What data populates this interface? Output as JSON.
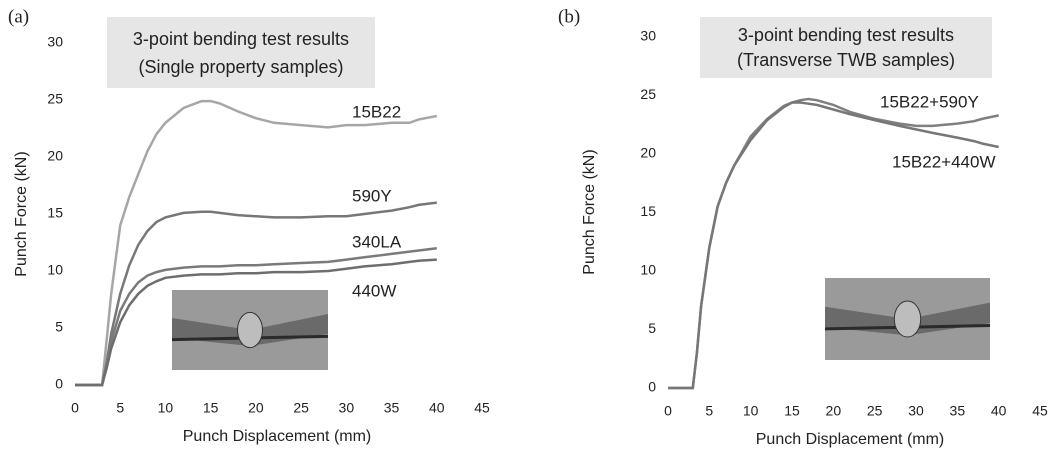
{
  "chart_data": [
    {
      "type": "line",
      "panel_label": "(a)",
      "title": "3-point bending test results",
      "subtitle": "(Single property samples)",
      "x_label": "Punch Displacement (mm)",
      "y_label": "Punch Force (kN)",
      "xlim": [
        0,
        45
      ],
      "ylim": [
        0,
        30
      ],
      "xticks": [
        0,
        5,
        10,
        15,
        20,
        25,
        30,
        35,
        40,
        45
      ],
      "yticks": [
        0,
        5,
        10,
        15,
        20,
        25,
        30
      ],
      "grid": false,
      "x": [
        0,
        3,
        3.5,
        4,
        5,
        6,
        7,
        8,
        9,
        10,
        12,
        14,
        15,
        16,
        18,
        20,
        22,
        25,
        28,
        30,
        32,
        35,
        37,
        38,
        40
      ],
      "series": [
        {
          "name": "15B22",
          "color": "#a6a6a6",
          "values": [
            0,
            0,
            4,
            8,
            14,
            16.5,
            18.5,
            20.5,
            22,
            23,
            24.3,
            24.9,
            24.9,
            24.7,
            24,
            23.4,
            23,
            22.8,
            22.6,
            22.8,
            22.8,
            23,
            23,
            23.3,
            23.6
          ]
        },
        {
          "name": "590Y",
          "color": "#777777",
          "values": [
            0,
            0,
            2,
            4.5,
            8,
            10.5,
            12.3,
            13.5,
            14.3,
            14.7,
            15.1,
            15.2,
            15.2,
            15.1,
            14.9,
            14.8,
            14.7,
            14.7,
            14.8,
            14.8,
            15,
            15.3,
            15.6,
            15.8,
            16
          ]
        },
        {
          "name": "340LA",
          "color": "#7a7a7a",
          "values": [
            0,
            0,
            1.8,
            3.8,
            6.5,
            8,
            9,
            9.6,
            9.9,
            10.1,
            10.3,
            10.4,
            10.4,
            10.4,
            10.5,
            10.5,
            10.6,
            10.7,
            10.8,
            11,
            11.2,
            11.5,
            11.7,
            11.8,
            12
          ]
        },
        {
          "name": "440W",
          "color": "#6e6e6e",
          "values": [
            0,
            0,
            1.5,
            3.2,
            5.5,
            7,
            8,
            8.7,
            9.1,
            9.4,
            9.6,
            9.7,
            9.7,
            9.7,
            9.8,
            9.8,
            9.9,
            9.9,
            10,
            10.2,
            10.4,
            10.6,
            10.8,
            10.9,
            11
          ]
        }
      ]
    },
    {
      "type": "line",
      "panel_label": "(b)",
      "title": "3-point bending test results",
      "subtitle": "(Transverse TWB samples)",
      "x_label": "Punch Displacement (mm)",
      "y_label": "Punch Force (kN)",
      "xlim": [
        0,
        45
      ],
      "ylim": [
        0,
        30
      ],
      "xticks": [
        0,
        5,
        10,
        15,
        20,
        25,
        30,
        35,
        40,
        45
      ],
      "yticks": [
        0,
        5,
        10,
        15,
        20,
        25,
        30
      ],
      "grid": false,
      "x": [
        0,
        3,
        3.5,
        4,
        5,
        6,
        7,
        8,
        10,
        12,
        14,
        15,
        16,
        17,
        18,
        20,
        22,
        25,
        28,
        30,
        32,
        35,
        37,
        38,
        40
      ],
      "series": [
        {
          "name": "15B22+590Y",
          "color": "#7f7f7f",
          "values": [
            0,
            0,
            3,
            7,
            12,
            15.5,
            17.5,
            19,
            21.5,
            23,
            24.1,
            24.4,
            24.6,
            24.7,
            24.6,
            24.2,
            23.6,
            23,
            22.6,
            22.4,
            22.4,
            22.6,
            22.8,
            23,
            23.3
          ]
        },
        {
          "name": "15B22+440W",
          "color": "#777777",
          "values": [
            0,
            0,
            3,
            7,
            12,
            15.5,
            17.5,
            19,
            21.2,
            22.9,
            24,
            24.4,
            24.4,
            24.3,
            24.2,
            23.8,
            23.4,
            22.9,
            22.4,
            22.1,
            21.8,
            21.4,
            21.1,
            20.9,
            20.6
          ]
        }
      ]
    }
  ]
}
